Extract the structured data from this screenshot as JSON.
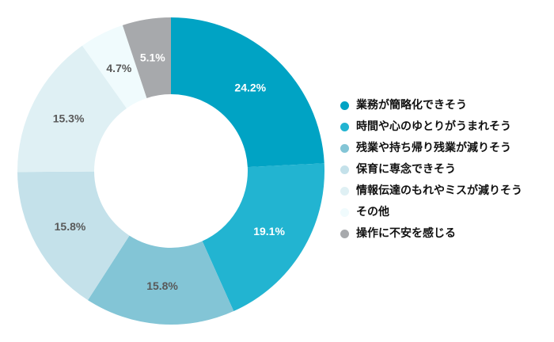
{
  "chart_data": {
    "type": "pie",
    "donut": true,
    "title": "",
    "categories": [
      "業務が簡略化できそう",
      "時間や心のゆとりがうまれそう",
      "残業や持ち帰り残業が減りそう",
      "保育に専念できそう",
      "情報伝達のもれやミスが減りそう",
      "その他",
      "操作に不安を感じる"
    ],
    "values": [
      24.2,
      19.1,
      15.8,
      15.8,
      15.3,
      4.7,
      5.1
    ],
    "labels": [
      "24.2%",
      "19.1%",
      "15.8%",
      "15.8%",
      "15.3%",
      "4.7%",
      "5.1%"
    ],
    "colors": [
      "#00a3c4",
      "#22b4d1",
      "#83c5d6",
      "#c4e1ea",
      "#dff0f4",
      "#f0fbfd",
      "#a7a9ac"
    ],
    "label_colors": [
      "#ffffff",
      "#ffffff",
      "#595959",
      "#595959",
      "#595959",
      "#595959",
      "#ffffff"
    ],
    "start_angle_deg": 0,
    "direction": "clockwise",
    "legend_position": "right"
  },
  "legend": {
    "items": [
      {
        "label": "業務が簡略化できそう",
        "color": "#00a3c4"
      },
      {
        "label": "時間や心のゆとりがうまれそう",
        "color": "#22b4d1"
      },
      {
        "label": "残業や持ち帰り残業が減りそう",
        "color": "#83c5d6"
      },
      {
        "label": "保育に専念できそう",
        "color": "#c4e1ea"
      },
      {
        "label": "情報伝達のもれやミスが減りそう",
        "color": "#dff0f4"
      },
      {
        "label": "その他",
        "color": "#f0fbfd"
      },
      {
        "label": "操作に不安を感じる",
        "color": "#a7a9ac"
      }
    ]
  }
}
